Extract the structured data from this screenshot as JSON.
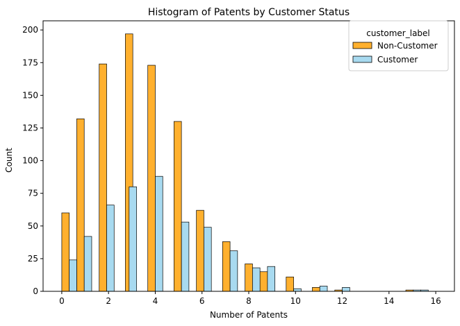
{
  "chart_data": {
    "type": "bar",
    "title": "Histogram of Patents by Customer Status",
    "xlabel": "Number of Patents",
    "ylabel": "Count",
    "xlim": [
      -0.8,
      16.8
    ],
    "ylim": [
      0,
      207
    ],
    "xticks": [
      0,
      2,
      4,
      6,
      8,
      10,
      12,
      14,
      16
    ],
    "yticks": [
      0,
      25,
      50,
      75,
      100,
      125,
      150,
      175,
      200
    ],
    "bin_width": 0.64,
    "legend_title": "customer_label",
    "legend_position": "top-right",
    "grid": false,
    "series": [
      {
        "name": "Non-Customer",
        "color": "#FFB02E",
        "x_start": [
          0,
          0.64,
          1.6,
          2.72,
          3.68,
          4.8,
          5.76,
          6.88,
          7.84,
          8.48,
          9.6,
          10.72,
          11.68,
          14.72
        ],
        "values": [
          60,
          132,
          174,
          197,
          173,
          130,
          62,
          38,
          21,
          15,
          11,
          3,
          1,
          1
        ]
      },
      {
        "name": "Customer",
        "color": "#A8DAF0",
        "x_start": [
          0.32,
          0.96,
          1.92,
          2.88,
          4.0,
          5.12,
          6.08,
          7.2,
          8.16,
          8.8,
          9.92,
          11.04,
          12.0,
          15.36
        ],
        "values": [
          24,
          42,
          66,
          80,
          88,
          53,
          49,
          31,
          18,
          19,
          2,
          4,
          3,
          1
        ]
      }
    ],
    "overlay_bars": [
      {
        "x_start": 15.04,
        "value": 1,
        "color": "#A8DAF0"
      }
    ]
  }
}
